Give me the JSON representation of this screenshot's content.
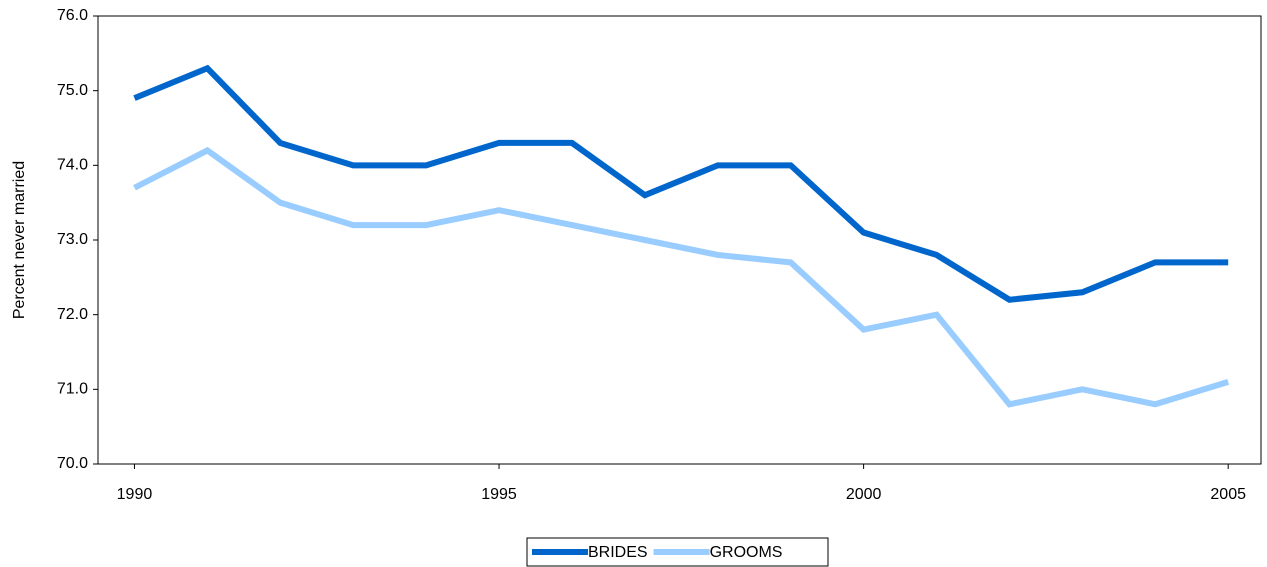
{
  "chart_data": {
    "type": "line",
    "y_label": "Percent never married",
    "x": [
      1990,
      1991,
      1992,
      1993,
      1994,
      1995,
      1996,
      1997,
      1998,
      1999,
      2000,
      2001,
      2002,
      2003,
      2004,
      2005
    ],
    "series": [
      {
        "name": "BRIDES",
        "color": "#0066cc",
        "values": [
          74.9,
          75.3,
          74.3,
          74.0,
          74.0,
          74.3,
          74.3,
          73.6,
          74.0,
          74.0,
          73.1,
          72.8,
          72.2,
          72.3,
          72.7,
          72.7
        ]
      },
      {
        "name": "GROOMS",
        "color": "#99ccff",
        "values": [
          73.7,
          74.2,
          73.5,
          73.2,
          73.2,
          73.4,
          73.2,
          73.0,
          72.8,
          72.7,
          71.8,
          72.0,
          70.8,
          71.0,
          70.8,
          71.1
        ]
      }
    ],
    "xlim": [
      1989.5,
      2005.45
    ],
    "xticks": [
      1990,
      1995,
      2000,
      2005
    ],
    "ylim": [
      70,
      76
    ],
    "yticks": [
      {
        "value": 70,
        "label": "70.0"
      },
      {
        "value": 71,
        "label": "71.0"
      },
      {
        "value": 72,
        "label": "72.0"
      },
      {
        "value": 73,
        "label": "73.0"
      },
      {
        "value": 74,
        "label": "74.0"
      },
      {
        "value": 75,
        "label": "75.0"
      },
      {
        "value": 76,
        "label": "76.0"
      }
    ],
    "legend": "bottom"
  }
}
